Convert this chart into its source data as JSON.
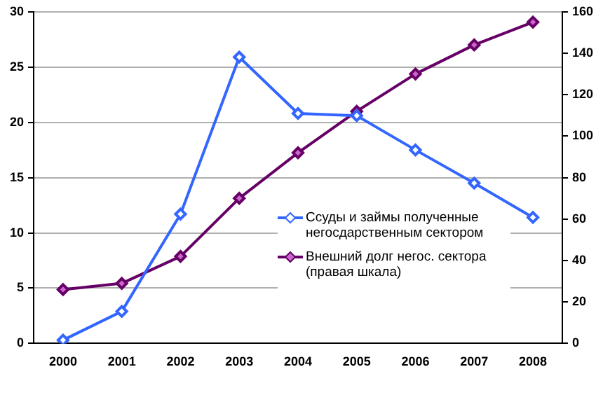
{
  "chart_data": {
    "type": "line",
    "categories": [
      "2000",
      "2001",
      "2002",
      "2003",
      "2004",
      "2005",
      "2006",
      "2007",
      "2008"
    ],
    "series": [
      {
        "name": "Ссуды и займы полученные негосдарственным сектором",
        "color": "#3366ff",
        "values": [
          0.3,
          2.9,
          11.7,
          25.9,
          20.8,
          20.6,
          17.5,
          14.5,
          11.4
        ]
      },
      {
        "name": "Внешний долг негос. сектора (правая шкала)",
        "color": "#660066",
        "axis": "y2",
        "values": [
          26,
          29,
          42,
          70,
          92,
          112,
          130,
          144,
          155
        ]
      }
    ],
    "ylim": [
      0,
      30
    ],
    "yticks": [
      0,
      5,
      10,
      15,
      20,
      25,
      30
    ],
    "y2lim": [
      0,
      160
    ],
    "y2ticks": [
      0,
      20,
      40,
      60,
      80,
      100,
      120,
      140,
      160
    ],
    "grid": "y",
    "legend": "right",
    "marker": "diamond",
    "line_style": "solid"
  }
}
